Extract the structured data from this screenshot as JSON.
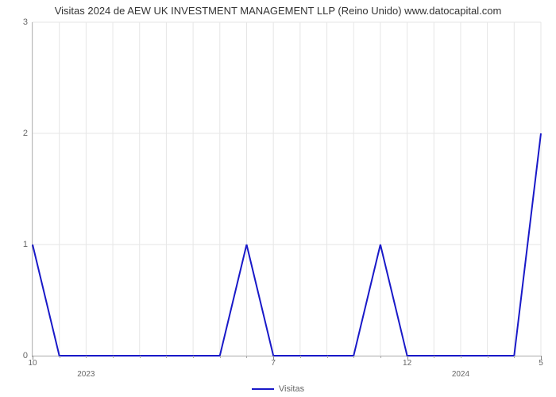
{
  "chart": {
    "type": "line",
    "title": "Visitas 2024 de AEW UK INVESTMENT MANAGEMENT LLP (Reino Unido) www.datocapital.com",
    "title_fontsize": 13,
    "title_color": "#333333",
    "background_color": "#ffffff",
    "plot_bg": "#ffffff",
    "grid_color": "#e6e6e6",
    "axis_color": "#888888",
    "line_color": "#1919c8",
    "line_width": 2,
    "ylim": [
      0,
      3
    ],
    "yticks": [
      0,
      1,
      2,
      3
    ],
    "x_count": 20,
    "x_major_ticks": [
      {
        "idx": 0,
        "label": "10"
      },
      {
        "idx": 9,
        "label": "7"
      },
      {
        "idx": 14,
        "label": "12"
      },
      {
        "idx": 19,
        "label": "5"
      }
    ],
    "x_year_labels": [
      {
        "idx": 2,
        "label": "2023"
      },
      {
        "idx": 16,
        "label": "2024"
      }
    ],
    "x_minor_every": 1,
    "values": [
      1,
      0,
      0,
      0,
      0,
      0,
      0,
      0,
      1,
      0,
      0,
      0,
      0,
      1,
      0,
      0,
      0,
      0,
      0,
      2
    ],
    "legend_label": "Visitas",
    "label_fontsize": 11,
    "label_color": "#666666"
  }
}
